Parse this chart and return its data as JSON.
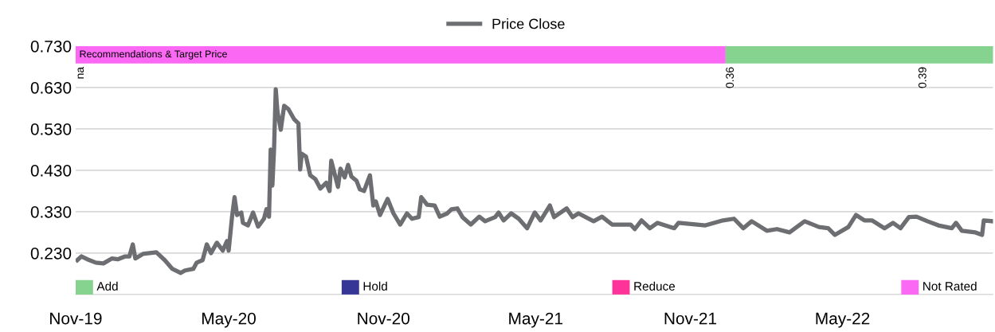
{
  "chart_data": {
    "type": "line",
    "x": [
      "2019-11-03",
      "2019-11-08",
      "2019-11-15",
      "2019-11-25",
      "2019-12-04",
      "2019-12-14",
      "2019-12-21",
      "2019-12-30",
      "2020-01-04",
      "2020-01-08",
      "2020-01-11",
      "2020-01-20",
      "2020-02-05",
      "2020-02-15",
      "2020-02-24",
      "2020-03-05",
      "2020-03-10",
      "2020-03-20",
      "2020-03-24",
      "2020-03-31",
      "2020-04-05",
      "2020-04-10",
      "2020-04-17",
      "2020-04-24",
      "2020-04-29",
      "2020-05-01",
      "2020-05-05",
      "2020-05-08",
      "2020-05-11",
      "2020-05-16",
      "2020-05-18",
      "2020-05-24",
      "2020-05-30",
      "2020-06-05",
      "2020-06-12",
      "2020-06-15",
      "2020-06-18",
      "2020-06-20",
      "2020-06-22",
      "2020-06-24",
      "2020-06-26",
      "2020-06-28",
      "2020-07-02",
      "2020-07-06",
      "2020-07-11",
      "2020-07-18",
      "2020-07-23",
      "2020-07-25",
      "2020-07-27",
      "2020-08-01",
      "2020-08-06",
      "2020-08-12",
      "2020-08-18",
      "2020-08-25",
      "2020-08-29",
      "2020-08-31",
      "2020-09-08",
      "2020-09-11",
      "2020-09-16",
      "2020-09-20",
      "2020-09-24",
      "2020-09-30",
      "2020-10-04",
      "2020-10-09",
      "2020-10-16",
      "2020-10-20",
      "2020-10-23",
      "2020-10-28",
      "2020-11-06",
      "2020-11-13",
      "2020-11-21",
      "2020-11-29",
      "2020-12-05",
      "2020-12-13",
      "2020-12-16",
      "2020-12-23",
      "2021-01-01",
      "2021-01-07",
      "2021-01-16",
      "2021-01-21",
      "2021-01-28",
      "2021-02-03",
      "2021-02-13",
      "2021-02-23",
      "2021-03-02",
      "2021-03-14",
      "2021-03-18",
      "2021-03-24",
      "2021-04-02",
      "2021-04-11",
      "2021-04-21",
      "2021-04-30",
      "2021-05-07",
      "2021-05-18",
      "2021-05-23",
      "2021-06-07",
      "2021-06-14",
      "2021-06-21",
      "2021-07-09",
      "2021-07-19",
      "2021-07-31",
      "2021-08-22",
      "2021-08-27",
      "2021-09-04",
      "2021-09-14",
      "2021-09-23",
      "2021-10-13",
      "2021-10-18",
      "2021-11-19",
      "2021-12-10",
      "2021-12-23",
      "2022-01-03",
      "2022-01-13",
      "2022-01-31",
      "2022-02-12",
      "2022-02-27",
      "2022-03-17",
      "2022-04-03",
      "2022-04-14",
      "2022-04-22",
      "2022-05-08",
      "2022-05-17",
      "2022-05-27",
      "2022-06-05",
      "2022-06-20",
      "2022-06-30",
      "2022-07-09",
      "2022-07-19",
      "2022-07-28",
      "2022-08-10",
      "2022-08-23",
      "2022-09-08",
      "2022-09-13",
      "2022-09-20",
      "2022-10-06",
      "2022-10-14",
      "2022-10-16",
      "2022-10-26"
    ],
    "series": [
      {
        "name": "Price Close",
        "color": "#6d6e71",
        "values": [
          0.213,
          0.222,
          0.215,
          0.207,
          0.205,
          0.217,
          0.215,
          0.222,
          0.222,
          0.251,
          0.217,
          0.228,
          0.232,
          0.213,
          0.192,
          0.182,
          0.188,
          0.192,
          0.207,
          0.213,
          0.251,
          0.23,
          0.255,
          0.236,
          0.259,
          0.236,
          0.317,
          0.365,
          0.322,
          0.328,
          0.303,
          0.297,
          0.328,
          0.294,
          0.313,
          0.336,
          0.318,
          0.48,
          0.393,
          0.482,
          0.626,
          0.572,
          0.528,
          0.586,
          0.578,
          0.553,
          0.543,
          0.432,
          0.47,
          0.463,
          0.418,
          0.409,
          0.386,
          0.4,
          0.38,
          0.453,
          0.39,
          0.434,
          0.413,
          0.443,
          0.415,
          0.405,
          0.384,
          0.38,
          0.418,
          0.345,
          0.355,
          0.322,
          0.361,
          0.326,
          0.299,
          0.326,
          0.313,
          0.317,
          0.365,
          0.347,
          0.345,
          0.318,
          0.326,
          0.336,
          0.338,
          0.317,
          0.299,
          0.318,
          0.307,
          0.317,
          0.328,
          0.309,
          0.326,
          0.313,
          0.29,
          0.328,
          0.309,
          0.345,
          0.317,
          0.338,
          0.317,
          0.326,
          0.307,
          0.318,
          0.299,
          0.299,
          0.288,
          0.309,
          0.29,
          0.303,
          0.29,
          0.303,
          0.297,
          0.309,
          0.313,
          0.29,
          0.307,
          0.284,
          0.288,
          0.28,
          0.307,
          0.293,
          0.29,
          0.274,
          0.293,
          0.322,
          0.309,
          0.309,
          0.29,
          0.303,
          0.29,
          0.317,
          0.318,
          0.307,
          0.297,
          0.29,
          0.303,
          0.284,
          0.28,
          0.274,
          0.309,
          0.307
        ]
      },
      {
        "name": "Add",
        "type": "area",
        "color": "#86d38f",
        "values": [
          null,
          null,
          null,
          null,
          null,
          null,
          null,
          null,
          null,
          null,
          null,
          null,
          null,
          null,
          null,
          null,
          null,
          null,
          null,
          null,
          null,
          null,
          null,
          null,
          null,
          null,
          null,
          null,
          null,
          null,
          null,
          null,
          null,
          null,
          null,
          null,
          null,
          null,
          null,
          null,
          null,
          null,
          null,
          null,
          null,
          null,
          null,
          null,
          null,
          null,
          null,
          null,
          null,
          null,
          null,
          null,
          null,
          null,
          null,
          null,
          null,
          null,
          null,
          null,
          null,
          null,
          null,
          null,
          null,
          null,
          null,
          null,
          null,
          null,
          null,
          null,
          null,
          null,
          null,
          null,
          null,
          null,
          null,
          null,
          null,
          null,
          null,
          null,
          null,
          null,
          null,
          null,
          null,
          null,
          null,
          null,
          null,
          null,
          null,
          null,
          null,
          null,
          null,
          null,
          null,
          null,
          null,
          null,
          null,
          null,
          null,
          null,
          null,
          null,
          null,
          null,
          null,
          null,
          null,
          null,
          null,
          null,
          null,
          null,
          null,
          null,
          null,
          null,
          null,
          null,
          null,
          null,
          null,
          null,
          null,
          null,
          null,
          null
        ]
      },
      {
        "name": "Hold",
        "type": "area",
        "color": "#363696",
        "values": [
          null,
          null,
          null,
          null,
          null,
          null,
          null,
          null,
          null,
          null,
          null,
          null,
          null,
          null,
          null,
          null,
          null,
          null,
          null,
          null,
          null,
          null,
          null,
          null,
          null,
          null,
          null,
          null,
          null,
          null,
          null,
          null,
          null,
          null,
          null,
          null,
          null,
          null,
          null,
          null,
          null,
          null,
          null,
          null,
          null,
          null,
          null,
          null,
          null,
          null,
          null,
          null,
          null,
          null,
          null,
          null,
          null,
          null,
          null,
          null,
          null,
          null,
          null,
          null,
          null,
          null,
          null,
          null,
          null,
          null,
          null,
          null,
          null,
          null,
          null,
          null,
          null,
          null,
          null,
          null,
          null,
          null,
          null,
          null,
          null,
          null,
          null,
          null,
          null,
          null,
          null,
          null,
          null,
          null,
          null,
          null,
          null,
          null,
          null,
          null,
          null,
          null,
          null,
          null,
          null,
          null,
          null,
          null,
          null,
          null,
          null,
          null,
          null,
          null,
          null,
          null,
          null,
          null,
          null,
          null,
          null,
          null,
          null,
          null,
          null,
          null,
          null,
          null,
          null,
          null,
          null,
          null,
          null,
          null,
          null,
          null,
          null,
          null
        ]
      },
      {
        "name": "Reduce",
        "type": "area",
        "color": "#fd3399",
        "values": [
          null,
          null,
          null,
          null,
          null,
          null,
          null,
          null,
          null,
          null,
          null,
          null,
          null,
          null,
          null,
          null,
          null,
          null,
          null,
          null,
          null,
          null,
          null,
          null,
          null,
          null,
          null,
          null,
          null,
          null,
          null,
          null,
          null,
          null,
          null,
          null,
          null,
          null,
          null,
          null,
          null,
          null,
          null,
          null,
          null,
          null,
          null,
          null,
          null,
          null,
          null,
          null,
          null,
          null,
          null,
          null,
          null,
          null,
          null,
          null,
          null,
          null,
          null,
          null,
          null,
          null,
          null,
          null,
          null,
          null,
          null,
          null,
          null,
          null,
          null,
          null,
          null,
          null,
          null,
          null,
          null,
          null,
          null,
          null,
          null,
          null,
          null,
          null,
          null,
          null,
          null,
          null,
          null,
          null,
          null,
          null,
          null,
          null,
          null,
          null,
          null,
          null,
          null,
          null,
          null,
          null,
          null,
          null,
          null,
          null,
          null,
          null,
          null,
          null,
          null,
          null,
          null,
          null,
          null,
          null,
          null,
          null,
          null,
          null,
          null,
          null,
          null,
          null,
          null,
          null,
          null,
          null,
          null,
          null,
          null,
          null,
          null,
          null
        ]
      },
      {
        "name": "Not Rated",
        "type": "area",
        "color": "#fb68f3",
        "values": [
          null,
          null,
          null,
          null,
          null,
          null,
          null,
          null,
          null,
          null,
          null,
          null,
          null,
          null,
          null,
          null,
          null,
          null,
          null,
          null,
          null,
          null,
          null,
          null,
          null,
          null,
          null,
          null,
          null,
          null,
          null,
          null,
          null,
          null,
          null,
          null,
          null,
          null,
          null,
          null,
          null,
          null,
          null,
          null,
          null,
          null,
          null,
          null,
          null,
          null,
          null,
          null,
          null,
          null,
          null,
          null,
          null,
          null,
          null,
          null,
          null,
          null,
          null,
          null,
          null,
          null,
          null,
          null,
          null,
          null,
          null,
          null,
          null,
          null,
          null,
          null,
          null,
          null,
          null,
          null,
          null,
          null,
          null,
          null,
          null,
          null,
          null,
          null,
          null,
          null,
          null,
          null,
          null,
          null,
          null,
          null,
          null,
          null,
          null,
          null,
          null,
          null,
          null,
          null,
          null,
          null,
          null,
          null,
          null,
          null,
          null,
          null,
          null,
          null,
          null,
          null,
          null,
          null,
          null,
          null,
          null,
          null,
          null,
          null,
          null,
          null,
          null,
          null,
          null,
          null,
          null,
          null,
          null,
          null,
          null,
          null,
          null,
          null
        ]
      }
    ],
    "bands": [
      {
        "axis": "x",
        "from": "2019-11-01",
        "to": "2021-12-13",
        "label": "Recommendations & Target Price",
        "color": "#fb68f3"
      },
      {
        "axis": "x",
        "from": "2021-12-13",
        "to": "2022-10-27",
        "color": "#86d38f"
      }
    ],
    "annotations": [
      {
        "text": "na",
        "x": "2019-11-01",
        "y": 0.68
      },
      {
        "text": "0.36",
        "x": "2021-12-13",
        "y": 0.68
      },
      {
        "text": "0.39",
        "x": "2022-07-30",
        "y": 0.68
      }
    ],
    "xlim": [
      "2019-11-01",
      "2022-10-27"
    ],
    "xticks": [
      {
        "value": "2019-11-01",
        "label": "Nov-19"
      },
      {
        "value": "2020-05-01",
        "label": "May-20"
      },
      {
        "value": "2020-11-01",
        "label": "Nov-20"
      },
      {
        "value": "2021-05-01",
        "label": "May-21"
      },
      {
        "value": "2021-11-01",
        "label": "Nov-21"
      },
      {
        "value": "2022-05-01",
        "label": "May-22"
      }
    ],
    "ylim": [
      0.13,
      0.73
    ],
    "yticks": [
      {
        "value": 0.13,
        "label": null
      },
      {
        "value": 0.23,
        "label": "0.230"
      },
      {
        "value": 0.33,
        "label": "0.330"
      },
      {
        "value": 0.43,
        "label": "0.430"
      },
      {
        "value": 0.53,
        "label": "0.530"
      },
      {
        "value": 0.63,
        "label": "0.630"
      },
      {
        "value": 0.73,
        "label": "0.730"
      }
    ],
    "grid": "y",
    "legend": "top"
  }
}
